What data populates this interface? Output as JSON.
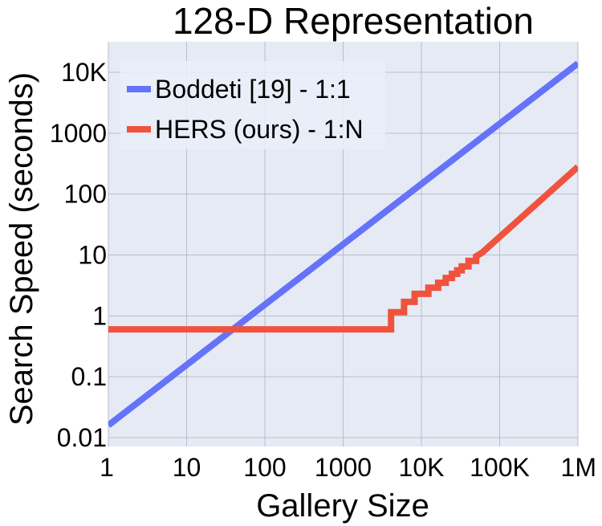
{
  "chart_data": {
    "type": "line",
    "title": "128-D Representation",
    "xlabel": "Gallery Size",
    "ylabel": "Search Speed (seconds)",
    "xscale": "log",
    "yscale": "log",
    "xlim": [
      1,
      1000000
    ],
    "ylim": [
      0.01,
      30000
    ],
    "x_ticks": [
      {
        "value": 1,
        "label": "1"
      },
      {
        "value": 10,
        "label": "10"
      },
      {
        "value": 100,
        "label": "100"
      },
      {
        "value": 1000,
        "label": "1000"
      },
      {
        "value": 10000,
        "label": "10K"
      },
      {
        "value": 100000,
        "label": "100K"
      },
      {
        "value": 1000000,
        "label": "1M"
      }
    ],
    "y_ticks": [
      {
        "value": 0.01,
        "label": "0.01"
      },
      {
        "value": 0.1,
        "label": "0.1"
      },
      {
        "value": 1,
        "label": "1"
      },
      {
        "value": 10,
        "label": "10"
      },
      {
        "value": 100,
        "label": "100"
      },
      {
        "value": 1000,
        "label": "1000"
      },
      {
        "value": 10000,
        "label": "10K"
      }
    ],
    "grid": true,
    "background": "#e5eaf5",
    "grid_color": "#b9bdca",
    "legend_position": "top-left",
    "series": [
      {
        "name": "Boddeti [19] - 1:1",
        "color": "#6473f8",
        "x": [
          1,
          1000000
        ],
        "y": [
          0.016,
          14000
        ]
      },
      {
        "name": "HERS (ours) - 1:N",
        "color": "#f0533d",
        "x": [
          1,
          4096,
          4096,
          6000,
          6000,
          8192,
          8192,
          12288,
          12288,
          16384,
          16384,
          20480,
          20480,
          24576,
          24576,
          28672,
          28672,
          32768,
          32768,
          40000,
          40000,
          50000,
          50000,
          60000,
          1000000
        ],
        "y": [
          0.6,
          0.6,
          1.15,
          1.15,
          1.7,
          1.7,
          2.3,
          2.3,
          2.9,
          2.9,
          3.5,
          3.5,
          4.2,
          4.2,
          4.9,
          4.9,
          5.6,
          5.6,
          6.5,
          6.5,
          8.0,
          8.0,
          9.5,
          11,
          280
        ]
      }
    ]
  }
}
